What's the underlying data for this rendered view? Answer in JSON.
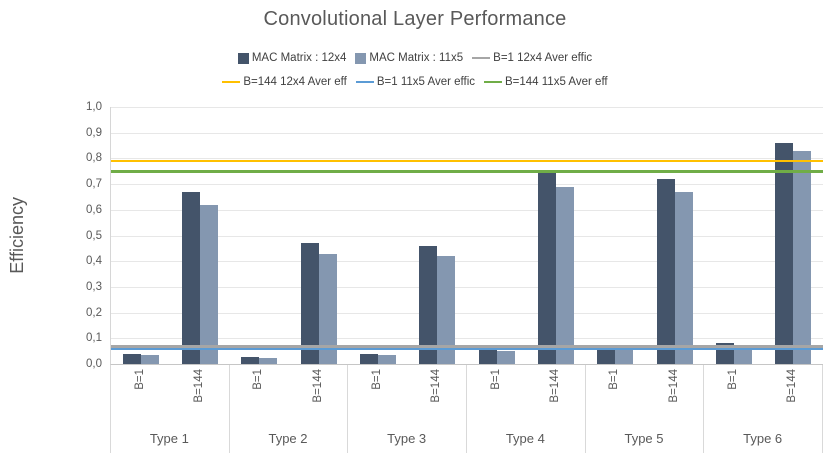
{
  "title": "Convolutional Layer Performance",
  "y_axis_label": "Efficiency",
  "legend": {
    "rows": [
      [
        {
          "label": "MAC Matrix : 12x4",
          "marker": "square",
          "color": "#44546A"
        },
        {
          "label": "MAC Matrix : 11x5",
          "marker": "square",
          "color": "#8497B0"
        },
        {
          "label": "B=1 12x4 Aver effic",
          "marker": "line",
          "color": "#A6A6A6"
        }
      ],
      [
        {
          "label": "B=144 12x4 Aver eff",
          "marker": "line",
          "color": "#FFC000"
        },
        {
          "label": "B=1 11x5 Aver effic",
          "marker": "line",
          "color": "#5B9BD5"
        },
        {
          "label": "B=144 11x5 Aver eff",
          "marker": "line",
          "color": "#70AD47"
        }
      ]
    ]
  },
  "chart_data": {
    "type": "bar",
    "title": "Convolutional Layer Performance",
    "xlabel": "",
    "ylabel": "Efficiency",
    "ylim": [
      0.0,
      1.0
    ],
    "grid": true,
    "legend_position": "top",
    "decimal_separator": ",",
    "y_ticks": [
      "1,0",
      "0,9",
      "0,8",
      "0,7",
      "0,6",
      "0,5",
      "0,4",
      "0,3",
      "0,2",
      "0,1",
      "0,0"
    ],
    "groups": [
      "Type 1",
      "Type 2",
      "Type 3",
      "Type 4",
      "Type 5",
      "Type 6"
    ],
    "subgroups": [
      "B=1",
      "B=144"
    ],
    "series": [
      {
        "name": "MAC Matrix : 12x4",
        "color": "#44546A",
        "values_b1": [
          0.04,
          0.028,
          0.04,
          0.058,
          0.062,
          0.08
        ],
        "values_b144": [
          0.67,
          0.47,
          0.46,
          0.75,
          0.72,
          0.86
        ]
      },
      {
        "name": "MAC Matrix : 11x5",
        "color": "#8497B0",
        "values_b1": [
          0.036,
          0.022,
          0.034,
          0.05,
          0.057,
          0.07
        ],
        "values_b144": [
          0.62,
          0.43,
          0.42,
          0.69,
          0.67,
          0.83
        ]
      }
    ],
    "lines": [
      {
        "name": "B=1 12x4 Aver effic",
        "color": "#A6A6A6",
        "value": 0.07
      },
      {
        "name": "B=144 12x4 Aver eff",
        "color": "#FFC000",
        "value": 0.79
      },
      {
        "name": "B=1 11x5 Aver effic",
        "color": "#5B9BD5",
        "value": 0.06
      },
      {
        "name": "B=144 11x5 Aver eff",
        "color": "#70AD47",
        "value": 0.75
      }
    ]
  }
}
